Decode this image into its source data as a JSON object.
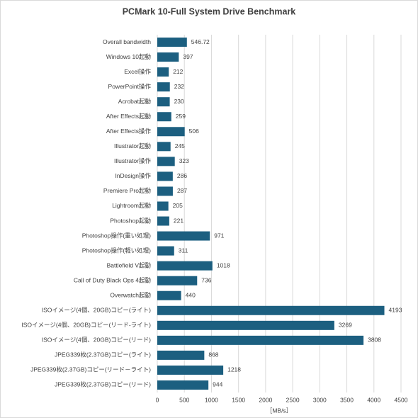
{
  "chart_data": {
    "type": "bar",
    "orientation": "horizontal",
    "title": "PCMark 10-Full System Drive Benchmark",
    "x_label": "［MB/s］",
    "categories": [
      "Overall bandwidth",
      "Windows 10起動",
      "Excel操作",
      "PowerPoint操作",
      "Acrobat起動",
      "After Effects起動",
      "After Effects操作",
      "Illustrator起動",
      "Illustrator操作",
      "InDesign操作",
      "Premiere Pro起動",
      "Lightroom起動",
      "Photoshop起動",
      "Photoshop操作(重い処理)",
      "Photoshop操作(軽い処理)",
      "Battlefield V起動",
      "Call of Duty Black Ops 4起動",
      "Overwatch起動",
      "ISOイメージ(4個、20GB)コピー(ライト)",
      "ISOイメージ(4個、20GB)コピー(リード-ライト)",
      "ISOイメージ(4個、20GB)コピー(リード)",
      "JPEG339枚(2.37GB)コピー(ライト)",
      "JPEG339枚(2.37GB)コピー(リード－ライト)",
      "JPEG339枚(2.37GB)コピー(リード)"
    ],
    "values": [
      546.72,
      397,
      212,
      232,
      230,
      259,
      506,
      245,
      323,
      286,
      287,
      205,
      221,
      971,
      311,
      1018,
      736,
      440,
      4193,
      3269,
      3808,
      868,
      1218,
      944
    ],
    "color": "#1c5f80",
    "xlim": [
      0,
      4500
    ],
    "xticks": [
      0,
      500,
      1000,
      1500,
      2000,
      2500,
      3000,
      3500,
      4000,
      4500
    ],
    "grid": true
  }
}
